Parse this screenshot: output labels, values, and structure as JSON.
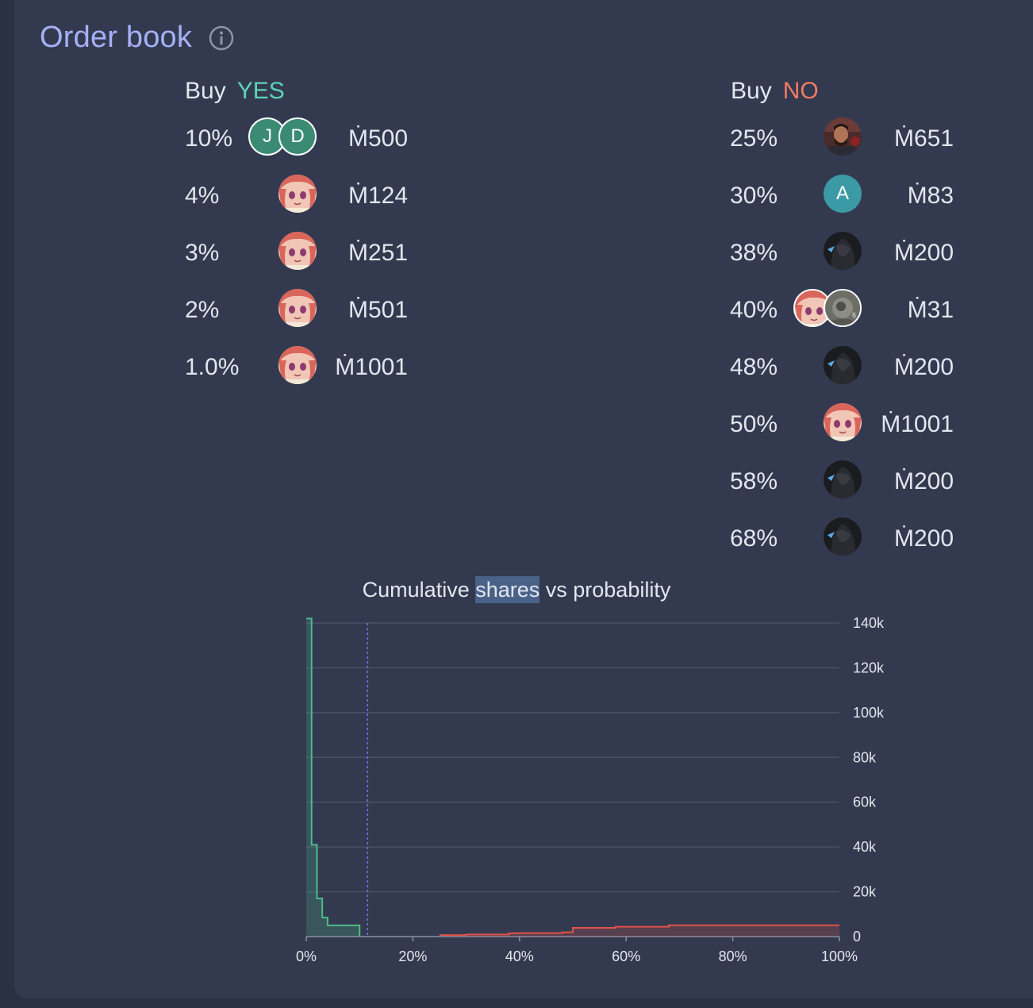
{
  "header": {
    "title": "Order book"
  },
  "yes_side": {
    "buy_label": "Buy",
    "side_label": "YES",
    "side_color": "#5ed3b7",
    "orders": [
      {
        "prob": "10%",
        "amount": "Ṁ500",
        "avatars": [
          "letter:J",
          "letter:D"
        ]
      },
      {
        "prob": "4%",
        "amount": "Ṁ124",
        "avatars": [
          "anime-girl"
        ]
      },
      {
        "prob": "3%",
        "amount": "Ṁ251",
        "avatars": [
          "anime-girl"
        ]
      },
      {
        "prob": "2%",
        "amount": "Ṁ501",
        "avatars": [
          "anime-girl"
        ]
      },
      {
        "prob": "1.0%",
        "amount": "Ṁ1001",
        "avatars": [
          "anime-girl"
        ]
      }
    ]
  },
  "no_side": {
    "buy_label": "Buy",
    "side_label": "NO",
    "side_color": "#f47c63",
    "orders": [
      {
        "prob": "25%",
        "amount": "Ṁ651",
        "avatars": [
          "photo-man"
        ]
      },
      {
        "prob": "30%",
        "amount": "Ṁ83",
        "avatars": [
          "letter:A"
        ]
      },
      {
        "prob": "38%",
        "amount": "Ṁ200",
        "avatars": [
          "dark-hooded"
        ]
      },
      {
        "prob": "40%",
        "amount": "Ṁ31",
        "avatars": [
          "anime-girl",
          "gray-photo"
        ]
      },
      {
        "prob": "48%",
        "amount": "Ṁ200",
        "avatars": [
          "dark-hooded"
        ]
      },
      {
        "prob": "50%",
        "amount": "Ṁ1001",
        "avatars": [
          "anime-girl"
        ]
      },
      {
        "prob": "58%",
        "amount": "Ṁ200",
        "avatars": [
          "dark-hooded"
        ]
      },
      {
        "prob": "68%",
        "amount": "Ṁ200",
        "avatars": [
          "dark-hooded"
        ]
      }
    ]
  },
  "chart_title": {
    "pre": "Cumulative ",
    "highlight": "shares",
    "post": " vs probability"
  },
  "chart_data": {
    "type": "area",
    "title": "Cumulative shares vs probability",
    "xlim": [
      0,
      100
    ],
    "ylim": [
      0,
      140000
    ],
    "x_ticks": [
      "0%",
      "20%",
      "40%",
      "60%",
      "80%",
      "100%"
    ],
    "y_ticks": [
      "0",
      "20k",
      "40k",
      "60k",
      "80k",
      "100k",
      "120k",
      "140k"
    ],
    "current_probability": 11.5,
    "series": [
      {
        "name": "YES",
        "color": "#4dbb8a",
        "steps": [
          [
            0,
            142000
          ],
          [
            1,
            142000
          ],
          [
            1,
            41000
          ],
          [
            2,
            41000
          ],
          [
            2,
            17000
          ],
          [
            3,
            17000
          ],
          [
            3,
            8500
          ],
          [
            4,
            8500
          ],
          [
            4,
            5000
          ],
          [
            10,
            5000
          ],
          [
            10,
            0
          ]
        ]
      },
      {
        "name": "NO",
        "color": "#e0524a",
        "steps": [
          [
            25,
            650
          ],
          [
            30,
            650
          ],
          [
            30,
            930
          ],
          [
            38,
            930
          ],
          [
            38,
            1460
          ],
          [
            40,
            1460
          ],
          [
            40,
            1540
          ],
          [
            48,
            1540
          ],
          [
            48,
            1920
          ],
          [
            50,
            1920
          ],
          [
            50,
            3920
          ],
          [
            58,
            3920
          ],
          [
            58,
            4400
          ],
          [
            68,
            4400
          ],
          [
            68,
            5030
          ],
          [
            100,
            5030
          ]
        ]
      }
    ]
  }
}
